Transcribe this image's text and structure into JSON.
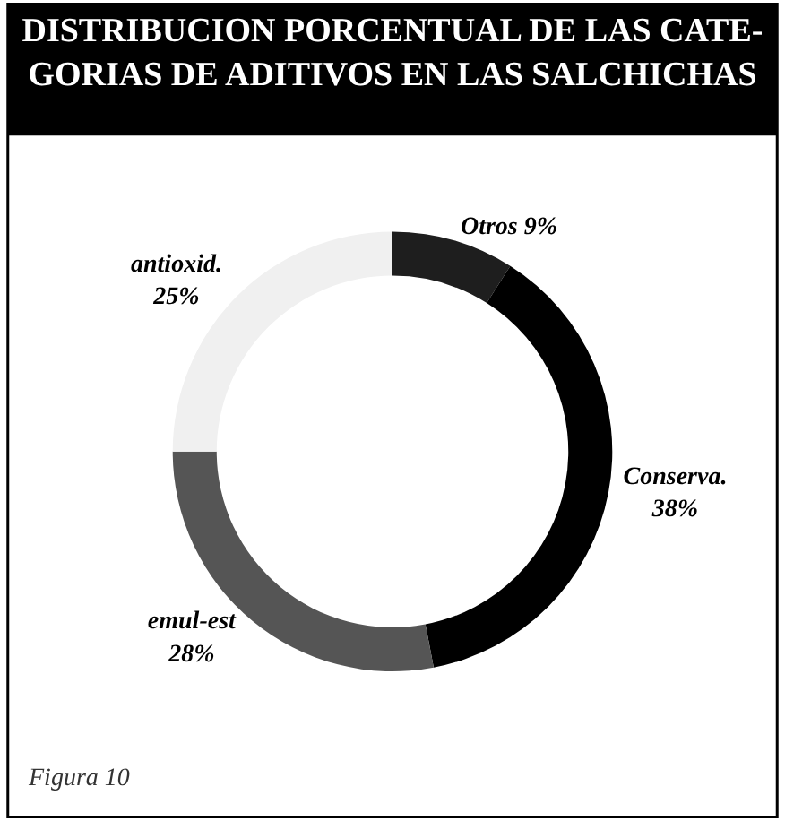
{
  "chart_data": {
    "type": "donut",
    "title": "DISTRIBUCION PORCENTUAL DE LAS CATE-\nGORIAS DE ADITIVOS EN LAS SALCHICHAS",
    "categories": [
      "Otros",
      "Conserva.",
      "emul-est",
      "antioxid."
    ],
    "values": [
      9,
      38,
      28,
      25
    ],
    "value_labels": [
      "9%",
      "38%",
      "28%",
      "25%"
    ],
    "colors": [
      "#1e1e1e",
      "#000000",
      "#555555",
      "#f0f0f0"
    ],
    "legend": false,
    "annotations": [
      "Figura 10"
    ]
  }
}
